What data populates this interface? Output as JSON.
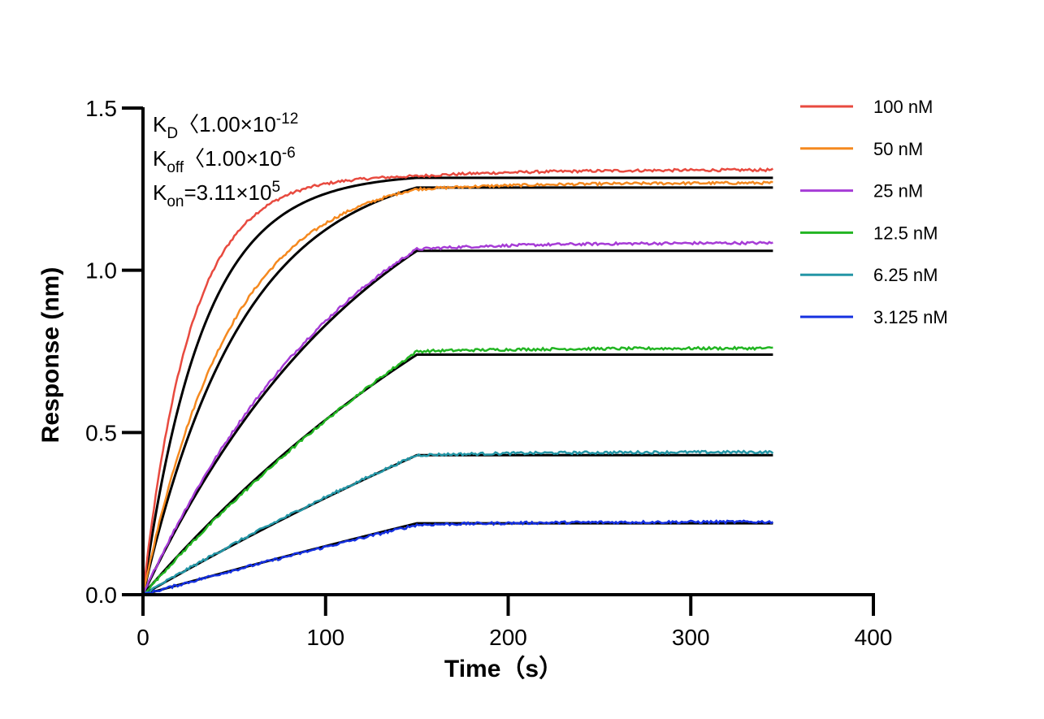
{
  "chart_data": {
    "type": "line",
    "xlabel": "Time（s）",
    "ylabel": "Response (nm)",
    "xlim": [
      0,
      400
    ],
    "ylim": [
      0,
      1.5
    ],
    "x_ticks": [
      "0",
      "100",
      "200",
      "300",
      "400"
    ],
    "y_ticks": [
      "0.0",
      "0.5",
      "1.0",
      "1.5"
    ],
    "grid": false,
    "legend_position": "top-right",
    "annotations": [
      {
        "main": "K",
        "sub": "D",
        "rest": "〈",
        "text": "1.00×10",
        "sup": "-12"
      },
      {
        "main": "K",
        "sub": "off",
        "rest": "〈",
        "text": "1.00×10",
        "sup": "-6"
      },
      {
        "main": "K",
        "sub": "on",
        "rest": "=",
        "text": "3.11×10",
        "sup": "5"
      }
    ],
    "association_end": 150,
    "x_end": 345,
    "fit_color": "#000000",
    "series": [
      {
        "name": "100 nM",
        "color": "#e84a3f",
        "plateau": 1.31,
        "rise_tau": 26,
        "fit_plateau": 1.285,
        "fit_tau": 33
      },
      {
        "name": "50 nM",
        "color": "#f5891f",
        "plateau": 1.27,
        "rise_tau": 48,
        "fit_plateau": 1.255,
        "fit_tau": 55
      },
      {
        "name": "25 nM",
        "color": "#a63cd6",
        "plateau": 1.085,
        "rise_tau": 120,
        "fit_plateau": 1.06,
        "fit_tau": 130
      },
      {
        "name": "12.5 nM",
        "color": "#22b522",
        "plateau": 0.76,
        "rise_tau": 330,
        "fit_plateau": 0.74,
        "fit_tau": 260
      },
      {
        "name": "6.25 nM",
        "color": "#2496a6",
        "plateau": 0.44,
        "rise_tau": 500,
        "fit_plateau": 0.43,
        "fit_tau": 600
      },
      {
        "name": "3.125 nM",
        "color": "#1530e0",
        "plateau": 0.225,
        "rise_tau": 900,
        "fit_plateau": 0.22,
        "fit_tau": 1200
      }
    ]
  }
}
